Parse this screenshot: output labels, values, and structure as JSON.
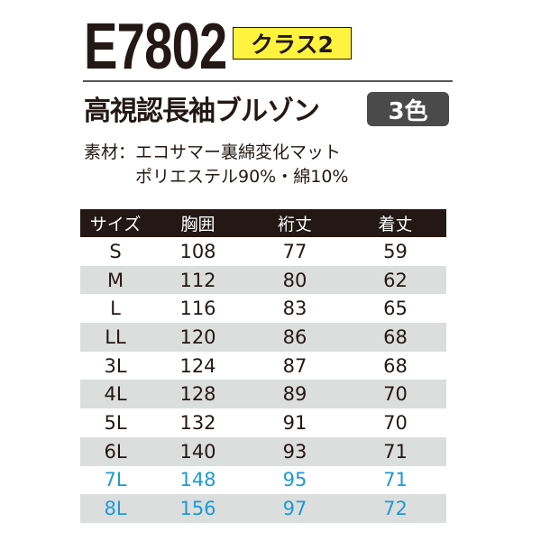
{
  "header": {
    "model": "E7802",
    "class_badge": "クラス2",
    "title": "高視認長袖ブルゾン",
    "color_badge": "3色"
  },
  "material": {
    "line1": "素材：エコサマー裏綿変化マット",
    "line2": "ポリエステル90%・綿10%"
  },
  "colors": {
    "class_badge_bg": "#fff33f",
    "header_bg": "#231815",
    "alt_row_bg": "#dcdddd",
    "highlight_text": "#1a9bd7",
    "color_badge_bg": "#4a4a4a"
  },
  "table": {
    "columns": [
      "サイズ",
      "胸囲",
      "裄丈",
      "着丈"
    ],
    "rows": [
      {
        "size": "S",
        "chest": "108",
        "sleeve": "77",
        "length": "59",
        "highlight": false
      },
      {
        "size": "M",
        "chest": "112",
        "sleeve": "80",
        "length": "62",
        "highlight": false
      },
      {
        "size": "L",
        "chest": "116",
        "sleeve": "83",
        "length": "65",
        "highlight": false
      },
      {
        "size": "LL",
        "chest": "120",
        "sleeve": "86",
        "length": "68",
        "highlight": false
      },
      {
        "size": "3L",
        "chest": "124",
        "sleeve": "87",
        "length": "68",
        "highlight": false
      },
      {
        "size": "4L",
        "chest": "128",
        "sleeve": "89",
        "length": "70",
        "highlight": false
      },
      {
        "size": "5L",
        "chest": "132",
        "sleeve": "91",
        "length": "70",
        "highlight": false
      },
      {
        "size": "6L",
        "chest": "140",
        "sleeve": "93",
        "length": "71",
        "highlight": false
      },
      {
        "size": "7L",
        "chest": "148",
        "sleeve": "95",
        "length": "71",
        "highlight": true
      },
      {
        "size": "8L",
        "chest": "156",
        "sleeve": "97",
        "length": "72",
        "highlight": true
      }
    ]
  }
}
